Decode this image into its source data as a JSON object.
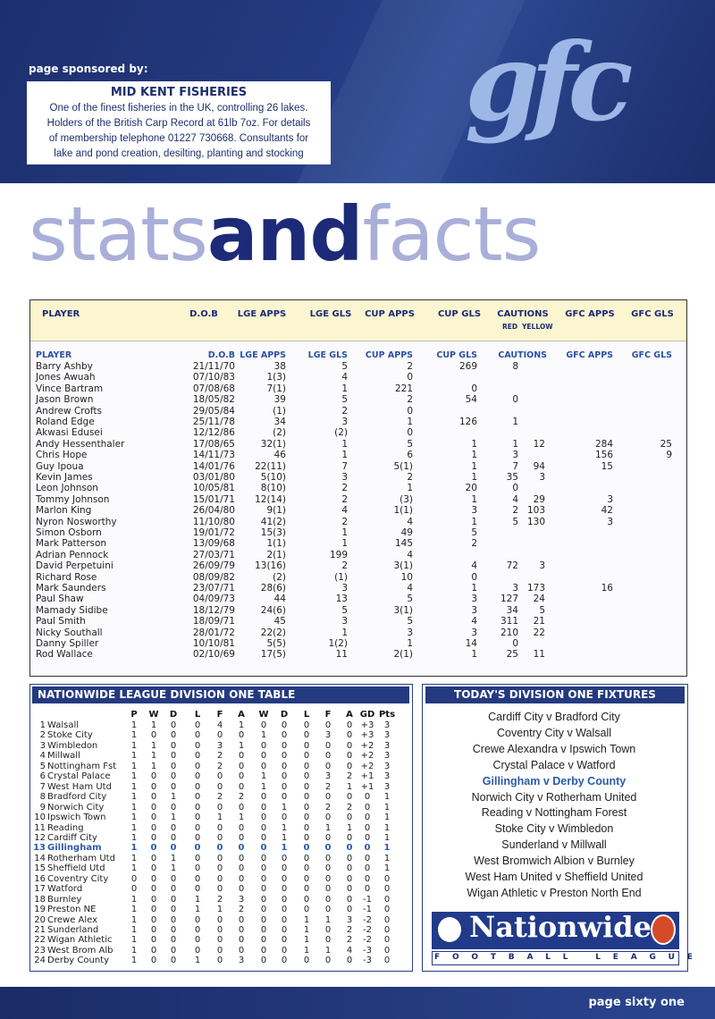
{
  "banner": {
    "sponsored_label": "page sponsored by:",
    "sponsor_name": "MID KENT FISHERIES",
    "sponsor_text": [
      "One of the finest fisheries in the UK, controlling 26 lakes.",
      "Holders of the British Carp Record at 61lb 7oz. For details",
      "of membership telephone 01227 730668. Consultants for",
      "lake and pond creation, desilting, planting and stocking"
    ],
    "logo": "gfc"
  },
  "heading": [
    "stats",
    "and",
    "facts"
  ],
  "stats_table": {
    "columns": [
      "PLAYER",
      "D.O.B",
      "LGE APPS",
      "LGE GLS",
      "CUP APPS",
      "CUP GLS",
      "CAUTIONS",
      "GFC APPS",
      "GFC GLS"
    ],
    "caution_subcolumns": [
      "RED",
      "YELLOW"
    ],
    "rows": [
      [
        "Barry Ashby",
        "21/11/70",
        "38",
        "5",
        "2",
        "269",
        "8",
        null,
        null,
        null
      ],
      [
        "Jones Awuah",
        "07/10/83",
        "1(3)",
        "4",
        "0",
        null,
        null,
        null,
        null,
        null
      ],
      [
        "Vince Bartram",
        "07/08/68",
        "7(1)",
        "1",
        "221",
        "0",
        null,
        null,
        null,
        null
      ],
      [
        "Jason Brown",
        "18/05/82",
        "39",
        "5",
        "2",
        "54",
        "0",
        null,
        null,
        null
      ],
      [
        "Andrew Crofts",
        "29/05/84",
        "(1)",
        "2",
        "0",
        null,
        null,
        null,
        null,
        null
      ],
      [
        "Roland Edge",
        "25/11/78",
        "34",
        "3",
        "1",
        "126",
        "1",
        null,
        null,
        null
      ],
      [
        "Akwasi Edusei",
        "12/12/86",
        "(2)",
        "(2)",
        "0",
        null,
        null,
        null,
        null,
        null
      ],
      [
        "Andy Hessenthaler",
        "17/08/65",
        "32(1)",
        "1",
        "5",
        "1",
        "1",
        "12",
        "284",
        "25"
      ],
      [
        "Chris Hope",
        "14/11/73",
        "46",
        "1",
        "6",
        "1",
        "3",
        null,
        "156",
        "9"
      ],
      [
        "Guy Ipoua",
        "14/01/76",
        "22(11)",
        "7",
        "5(1)",
        "1",
        "7",
        "94",
        "15",
        null
      ],
      [
        "Kevin James",
        "03/01/80",
        "5(10)",
        "3",
        "2",
        "1",
        "35",
        "3",
        null,
        null
      ],
      [
        "Leon Johnson",
        "10/05/81",
        "8(10)",
        "2",
        "1",
        "20",
        "0",
        null,
        null,
        null
      ],
      [
        "Tommy Johnson",
        "15/01/71",
        "12(14)",
        "2",
        "(3)",
        "1",
        "4",
        "29",
        "3",
        null
      ],
      [
        "Marlon King",
        "26/04/80",
        "9(1)",
        "4",
        "1(1)",
        "3",
        "2",
        "103",
        "42",
        null
      ],
      [
        "Nyron Nosworthy",
        "11/10/80",
        "41(2)",
        "2",
        "4",
        "1",
        "5",
        "130",
        "3",
        null
      ],
      [
        "Simon Osborn",
        "19/01/72",
        "15(3)",
        "1",
        "49",
        "5",
        null,
        null,
        null,
        null
      ],
      [
        "Mark Patterson",
        "13/09/68",
        "1(1)",
        "1",
        "145",
        "2",
        null,
        null,
        null,
        null
      ],
      [
        "Adrian Pennock",
        "27/03/71",
        "2(1)",
        "199",
        "4",
        null,
        null,
        null,
        null,
        null
      ],
      [
        "David Perpetuini",
        "26/09/79",
        "13(16)",
        "2",
        "3(1)",
        "4",
        "72",
        "3",
        null,
        null
      ],
      [
        "Richard Rose",
        "08/09/82",
        "(2)",
        "(1)",
        "10",
        "0",
        null,
        null,
        null,
        null
      ],
      [
        "Mark Saunders",
        "23/07/71",
        "28(6)",
        "3",
        "4",
        "1",
        "3",
        "173",
        "16",
        null
      ],
      [
        "Paul Shaw",
        "04/09/73",
        "44",
        "13",
        "5",
        "3",
        "127",
        "24",
        null,
        null
      ],
      [
        "Mamady Sidibe",
        "18/12/79",
        "24(6)",
        "5",
        "3(1)",
        "3",
        "34",
        "5",
        null,
        null
      ],
      [
        "Paul Smith",
        "18/09/71",
        "45",
        "3",
        "5",
        "4",
        "311",
        "21",
        null,
        null
      ],
      [
        "Nicky Southall",
        "28/01/72",
        "22(2)",
        "1",
        "3",
        "3",
        "210",
        "22",
        null,
        null
      ],
      [
        "Danny Spiller",
        "10/10/81",
        "5(5)",
        "1(2)",
        "1",
        "14",
        "0",
        null,
        null,
        null
      ],
      [
        "Rod Wallace",
        "02/10/69",
        "17(5)",
        "11",
        "2(1)",
        "1",
        "25",
        "11",
        null,
        null
      ]
    ]
  },
  "league_table": {
    "title": "NATIONWIDE LEAGUE DIVISION ONE TABLE",
    "columns": [
      "P",
      "W",
      "D",
      "L",
      "F",
      "A",
      "W",
      "D",
      "L",
      "F",
      "A",
      "GD",
      "Pts"
    ],
    "highlight_row": 12,
    "rows": [
      [
        "1",
        "Walsall",
        "1",
        "1",
        "0",
        "0",
        "4",
        "1",
        "0",
        "0",
        "0",
        "0",
        "0",
        "+3",
        "3"
      ],
      [
        "2",
        "Stoke City",
        "1",
        "0",
        "0",
        "0",
        "0",
        "0",
        "1",
        "0",
        "0",
        "3",
        "0",
        "+3",
        "3"
      ],
      [
        "3",
        "Wimbledon",
        "1",
        "1",
        "0",
        "0",
        "3",
        "1",
        "0",
        "0",
        "0",
        "0",
        "0",
        "+2",
        "3"
      ],
      [
        "4",
        "Millwall",
        "1",
        "1",
        "0",
        "0",
        "2",
        "0",
        "0",
        "0",
        "0",
        "0",
        "0",
        "+2",
        "3"
      ],
      [
        "5",
        "Nottingham Fst",
        "1",
        "1",
        "0",
        "0",
        "2",
        "0",
        "0",
        "0",
        "0",
        "0",
        "0",
        "+2",
        "3"
      ],
      [
        "6",
        "Crystal Palace",
        "1",
        "0",
        "0",
        "0",
        "0",
        "0",
        "1",
        "0",
        "0",
        "3",
        "2",
        "+1",
        "3"
      ],
      [
        "7",
        "West Ham Utd",
        "1",
        "0",
        "0",
        "0",
        "0",
        "0",
        "1",
        "0",
        "0",
        "2",
        "1",
        "+1",
        "3"
      ],
      [
        "8",
        "Bradford City",
        "1",
        "0",
        "1",
        "0",
        "2",
        "2",
        "0",
        "0",
        "0",
        "0",
        "0",
        "0",
        "1"
      ],
      [
        "9",
        "Norwich City",
        "1",
        "0",
        "0",
        "0",
        "0",
        "0",
        "0",
        "1",
        "0",
        "2",
        "2",
        "0",
        "1"
      ],
      [
        "10",
        "Ipswich Town",
        "1",
        "0",
        "1",
        "0",
        "1",
        "1",
        "0",
        "0",
        "0",
        "0",
        "0",
        "0",
        "1"
      ],
      [
        "11",
        "Reading",
        "1",
        "0",
        "0",
        "0",
        "0",
        "0",
        "0",
        "1",
        "0",
        "1",
        "1",
        "0",
        "1"
      ],
      [
        "12",
        "Cardiff City",
        "1",
        "0",
        "0",
        "0",
        "0",
        "0",
        "0",
        "1",
        "0",
        "0",
        "0",
        "0",
        "1"
      ],
      [
        "13",
        "Gillingham",
        "1",
        "0",
        "0",
        "0",
        "0",
        "0",
        "0",
        "1",
        "0",
        "0",
        "0",
        "0",
        "1"
      ],
      [
        "14",
        "Rotherham Utd",
        "1",
        "0",
        "1",
        "0",
        "0",
        "0",
        "0",
        "0",
        "0",
        "0",
        "0",
        "0",
        "1"
      ],
      [
        "15",
        "Sheffield Utd",
        "1",
        "0",
        "1",
        "0",
        "0",
        "0",
        "0",
        "0",
        "0",
        "0",
        "0",
        "0",
        "1"
      ],
      [
        "16",
        "Coventry City",
        "0",
        "0",
        "0",
        "0",
        "0",
        "0",
        "0",
        "0",
        "0",
        "0",
        "0",
        "0",
        "0"
      ],
      [
        "17",
        "Watford",
        "0",
        "0",
        "0",
        "0",
        "0",
        "0",
        "0",
        "0",
        "0",
        "0",
        "0",
        "0",
        "0"
      ],
      [
        "18",
        "Burnley",
        "1",
        "0",
        "0",
        "1",
        "2",
        "3",
        "0",
        "0",
        "0",
        "0",
        "0",
        "-1",
        "0"
      ],
      [
        "19",
        "Preston NE",
        "1",
        "0",
        "0",
        "1",
        "1",
        "2",
        "0",
        "0",
        "0",
        "0",
        "0",
        "-1",
        "0"
      ],
      [
        "20",
        "Crewe Alex",
        "1",
        "0",
        "0",
        "0",
        "0",
        "0",
        "0",
        "0",
        "1",
        "1",
        "3",
        "-2",
        "0"
      ],
      [
        "21",
        "Sunderland",
        "1",
        "0",
        "0",
        "0",
        "0",
        "0",
        "0",
        "0",
        "1",
        "0",
        "2",
        "-2",
        "0"
      ],
      [
        "22",
        "Wigan Athletic",
        "1",
        "0",
        "0",
        "0",
        "0",
        "0",
        "0",
        "0",
        "1",
        "0",
        "2",
        "-2",
        "0"
      ],
      [
        "23",
        "West Brom Alb",
        "1",
        "0",
        "0",
        "0",
        "0",
        "0",
        "0",
        "0",
        "1",
        "1",
        "4",
        "-3",
        "0"
      ],
      [
        "24",
        "Derby County",
        "1",
        "0",
        "0",
        "1",
        "0",
        "3",
        "0",
        "0",
        "0",
        "0",
        "0",
        "-3",
        "0"
      ]
    ]
  },
  "fixtures": {
    "title": "TODAY'S DIVISION ONE FIXTURES",
    "highlight": 4,
    "matches": [
      "Cardiff City v Bradford City",
      "Coventry City v Walsall",
      "Crewe Alexandra v Ipswich Town",
      "Crystal Palace v Watford",
      "Gillingham v Derby County",
      "Norwich City v Rotherham United",
      "Reading v Nottingham Forest",
      "Stoke City v Wimbledon",
      "Sunderland v Millwall",
      "West Bromwich Albion v Burnley",
      "West Ham United v Sheffield United",
      "Wigan Athletic v Preston North End"
    ]
  },
  "sponsor_logo": {
    "name": "Nationwide",
    "subtitle": "FOOTBALL LEAGUE"
  },
  "footer": "page sixty one"
}
